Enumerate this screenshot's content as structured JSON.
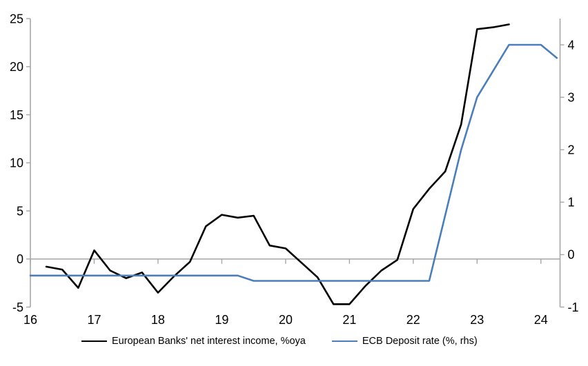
{
  "chart_data": {
    "type": "line",
    "title": "",
    "xlabel": "",
    "ylabel_left": "",
    "ylabel_right": "",
    "grid": "zero-line-only",
    "legend_position": "bottom",
    "x_axis": {
      "min": 16,
      "max": 24.3,
      "ticks": [
        16,
        17,
        18,
        19,
        20,
        21,
        22,
        23,
        24
      ],
      "tick_labels": [
        "16",
        "17",
        "18",
        "19",
        "20",
        "21",
        "22",
        "23",
        "24"
      ]
    },
    "left_axis": {
      "min": -5,
      "max": 25,
      "ticks": [
        -5,
        0,
        5,
        10,
        15,
        20,
        25
      ],
      "tick_labels": [
        "-5",
        "0",
        "5",
        "10",
        "15",
        "20",
        "25"
      ]
    },
    "right_axis": {
      "min": -1,
      "max": 4.5,
      "ticks": [
        -1,
        0,
        1,
        2,
        3,
        4
      ],
      "tick_labels": [
        "-1",
        "0",
        "1",
        "2",
        "3",
        "4"
      ]
    },
    "series": [
      {
        "name": "European Banks' net interest income, %oya",
        "axis": "left",
        "color": "#000000",
        "x": [
          16.25,
          16.5,
          16.75,
          17,
          17.25,
          17.5,
          17.75,
          18,
          18.25,
          18.5,
          18.75,
          19,
          19.25,
          19.5,
          19.75,
          20,
          20.25,
          20.5,
          20.75,
          21,
          21.25,
          21.5,
          21.75,
          22,
          22.25,
          22.5,
          22.75,
          23,
          23.25,
          23.5
        ],
        "values": [
          -0.8,
          -1.1,
          -3.0,
          0.9,
          -1.2,
          -2.0,
          -1.4,
          -3.5,
          -1.8,
          -0.3,
          3.4,
          4.6,
          4.3,
          4.5,
          1.4,
          1.1,
          -0.4,
          -1.9,
          -4.7,
          -4.7,
          -2.8,
          -1.2,
          -0.1,
          5.2,
          7.3,
          9.1,
          14.0,
          23.9,
          24.1,
          24.4
        ]
      },
      {
        "name": "ECB Deposit rate (%, rhs)",
        "axis": "right",
        "color": "#4a7eba",
        "x": [
          16,
          16.25,
          16.5,
          16.75,
          17,
          17.25,
          17.5,
          17.75,
          18,
          18.25,
          18.5,
          18.75,
          19,
          19.25,
          19.5,
          19.75,
          20,
          20.25,
          20.5,
          20.75,
          21,
          21.25,
          21.5,
          21.75,
          22,
          22.25,
          22.5,
          22.75,
          23,
          23.25,
          23.5,
          23.75,
          24,
          24.25
        ],
        "values": [
          -0.4,
          -0.4,
          -0.4,
          -0.4,
          -0.4,
          -0.4,
          -0.4,
          -0.4,
          -0.4,
          -0.4,
          -0.4,
          -0.4,
          -0.4,
          -0.4,
          -0.5,
          -0.5,
          -0.5,
          -0.5,
          -0.5,
          -0.5,
          -0.5,
          -0.5,
          -0.5,
          -0.5,
          -0.5,
          -0.5,
          0.75,
          2.0,
          3.0,
          3.5,
          4.0,
          4.0,
          4.0,
          3.75
        ]
      }
    ],
    "colors": {
      "axis_line": "#a6a6a6",
      "zero_line": "#a6a6a6",
      "label_text": "#000000"
    }
  }
}
